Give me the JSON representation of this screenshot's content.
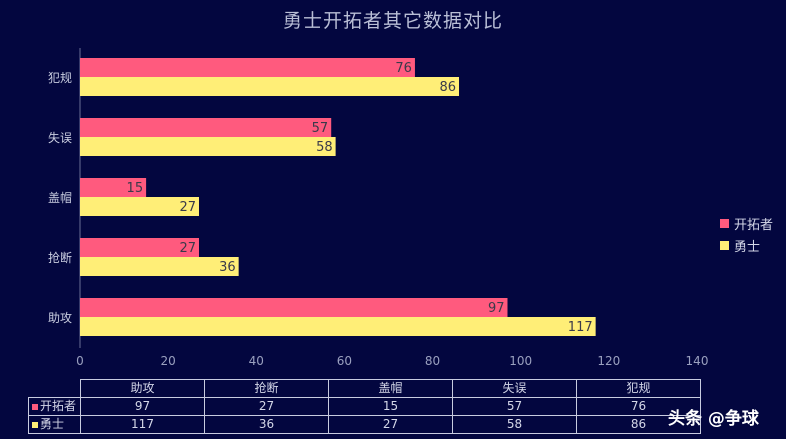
{
  "chart_data": {
    "type": "bar",
    "orientation": "horizontal",
    "title": "勇士开拓者其它数据对比",
    "categories": [
      "助攻",
      "抢断",
      "盖帽",
      "失误",
      "犯规"
    ],
    "series": [
      {
        "name": "开拓者",
        "color": "#ff5a7e",
        "values": [
          97,
          27,
          15,
          57,
          76
        ]
      },
      {
        "name": "勇士",
        "color": "#ffee77",
        "values": [
          117,
          36,
          27,
          58,
          86
        ]
      }
    ],
    "xlim": [
      0,
      140
    ],
    "x_ticks": [
      0,
      20,
      40,
      60,
      80,
      100,
      120,
      140
    ],
    "grid": false,
    "legend_position": "right",
    "data_table": true
  },
  "watermark": "头条 @争球"
}
